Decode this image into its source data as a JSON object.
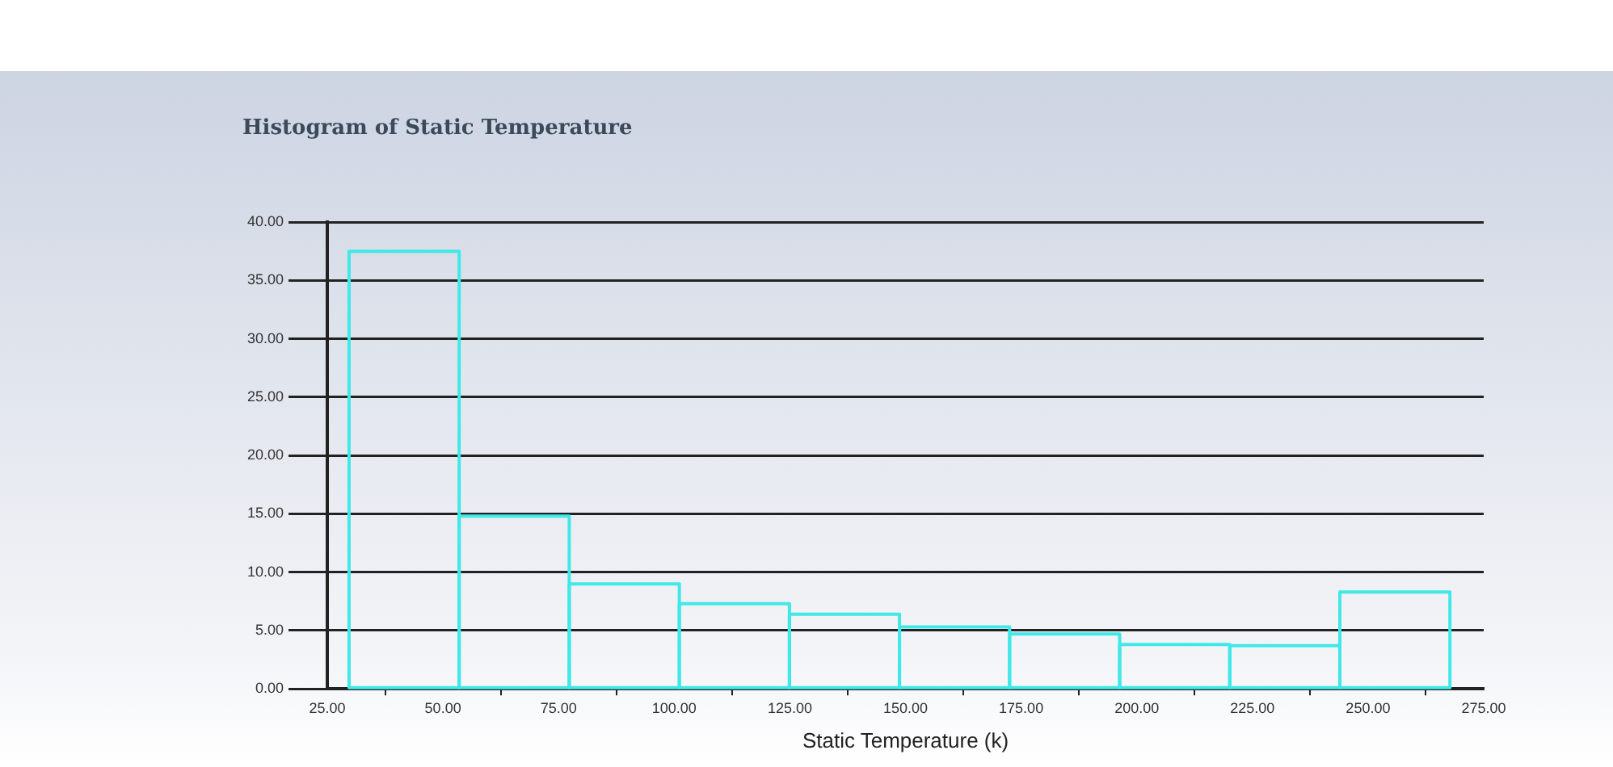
{
  "chart_data": {
    "type": "histogram",
    "title": "Histogram of Static Temperature",
    "xlabel": "Static Temperature (k)",
    "bins": [
      29.7,
      53.5,
      77.3,
      101.1,
      124.9,
      148.7,
      172.5,
      196.3,
      220.1,
      243.9,
      267.7
    ],
    "values": [
      37.5,
      14.8,
      9.0,
      7.3,
      6.4,
      5.3,
      4.7,
      3.8,
      3.7,
      8.3
    ],
    "color": "#40e8e8",
    "xlim": [
      25,
      275
    ],
    "xticks": [
      {
        "value": 25,
        "label": "25.00"
      },
      {
        "value": 50,
        "label": "50.00"
      },
      {
        "value": 75,
        "label": "75.00"
      },
      {
        "value": 100,
        "label": "100.00"
      },
      {
        "value": 125,
        "label": "125.00"
      },
      {
        "value": 150,
        "label": "150.00"
      },
      {
        "value": 175,
        "label": "175.00"
      },
      {
        "value": 200,
        "label": "200.00"
      },
      {
        "value": 225,
        "label": "225.00"
      },
      {
        "value": 250,
        "label": "250.00"
      },
      {
        "value": 275,
        "label": "275.00"
      }
    ],
    "ylim": [
      0,
      40
    ],
    "yticks": [
      {
        "value": 0,
        "label": "0.00"
      },
      {
        "value": 5,
        "label": "5.00"
      },
      {
        "value": 10,
        "label": "10.00"
      },
      {
        "value": 15,
        "label": "15.00"
      },
      {
        "value": 20,
        "label": "20.00"
      },
      {
        "value": 25,
        "label": "25.00"
      },
      {
        "value": 30,
        "label": "30.00"
      },
      {
        "value": 35,
        "label": "35.00"
      },
      {
        "value": 40,
        "label": "40.00"
      }
    ],
    "grid": "y"
  }
}
